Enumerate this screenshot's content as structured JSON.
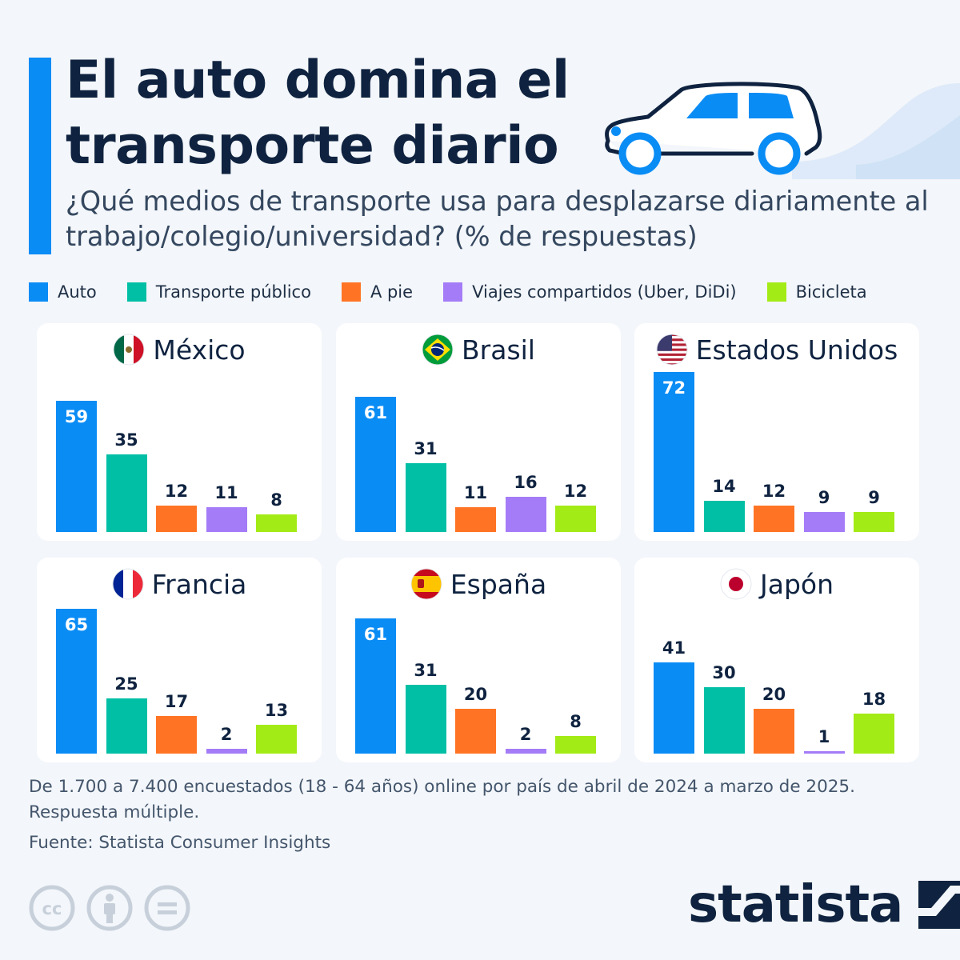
{
  "header": {
    "title": "El auto domina el\ntransporte diario",
    "subtitle": "¿Qué medios de transporte usa para desplazarse diariamente al trabajo/colegio/universidad? (% de respuestas)"
  },
  "legend": [
    {
      "label": "Auto",
      "color": "#0a8cf5"
    },
    {
      "label": "Transporte público",
      "color": "#00bfa5"
    },
    {
      "label": "A pie",
      "color": "#ff7424"
    },
    {
      "label": "Viajes compartidos (Uber, DiDi)",
      "color": "#a57cf7"
    },
    {
      "label": "Bicicleta",
      "color": "#a3eb16"
    }
  ],
  "chart_data": {
    "type": "bar",
    "categories": [
      "Auto",
      "Transporte público",
      "A pie",
      "Viajes compartidos (Uber, DiDi)",
      "Bicicleta"
    ],
    "colors": [
      "#0a8cf5",
      "#00bfa5",
      "#ff7424",
      "#a57cf7",
      "#a3eb16"
    ],
    "ylim": [
      0,
      72
    ],
    "panels": [
      {
        "country": "México",
        "flag": "mexico-flag-icon",
        "values": [
          59,
          35,
          12,
          11,
          8
        ]
      },
      {
        "country": "Brasil",
        "flag": "brazil-flag-icon",
        "values": [
          61,
          31,
          11,
          16,
          12
        ]
      },
      {
        "country": "Estados Unidos",
        "flag": "usa-flag-icon",
        "values": [
          72,
          14,
          12,
          9,
          9
        ]
      },
      {
        "country": "Francia",
        "flag": "france-flag-icon",
        "values": [
          65,
          25,
          17,
          2,
          13
        ]
      },
      {
        "country": "España",
        "flag": "spain-flag-icon",
        "values": [
          61,
          31,
          20,
          2,
          8
        ]
      },
      {
        "country": "Japón",
        "flag": "japan-flag-icon",
        "values": [
          41,
          30,
          20,
          1,
          18
        ]
      }
    ]
  },
  "footer": {
    "note_1": "De 1.700 a 7.400 encuestados (18 - 64 años) online por país de abril de 2024 a marzo de 2025.",
    "note_2": "Respuesta múltiple.",
    "source": "Fuente: Statista Consumer Insights",
    "license_icons": [
      "cc-icon",
      "attribution-icon",
      "no-derivatives-icon"
    ],
    "brand": "statista"
  }
}
